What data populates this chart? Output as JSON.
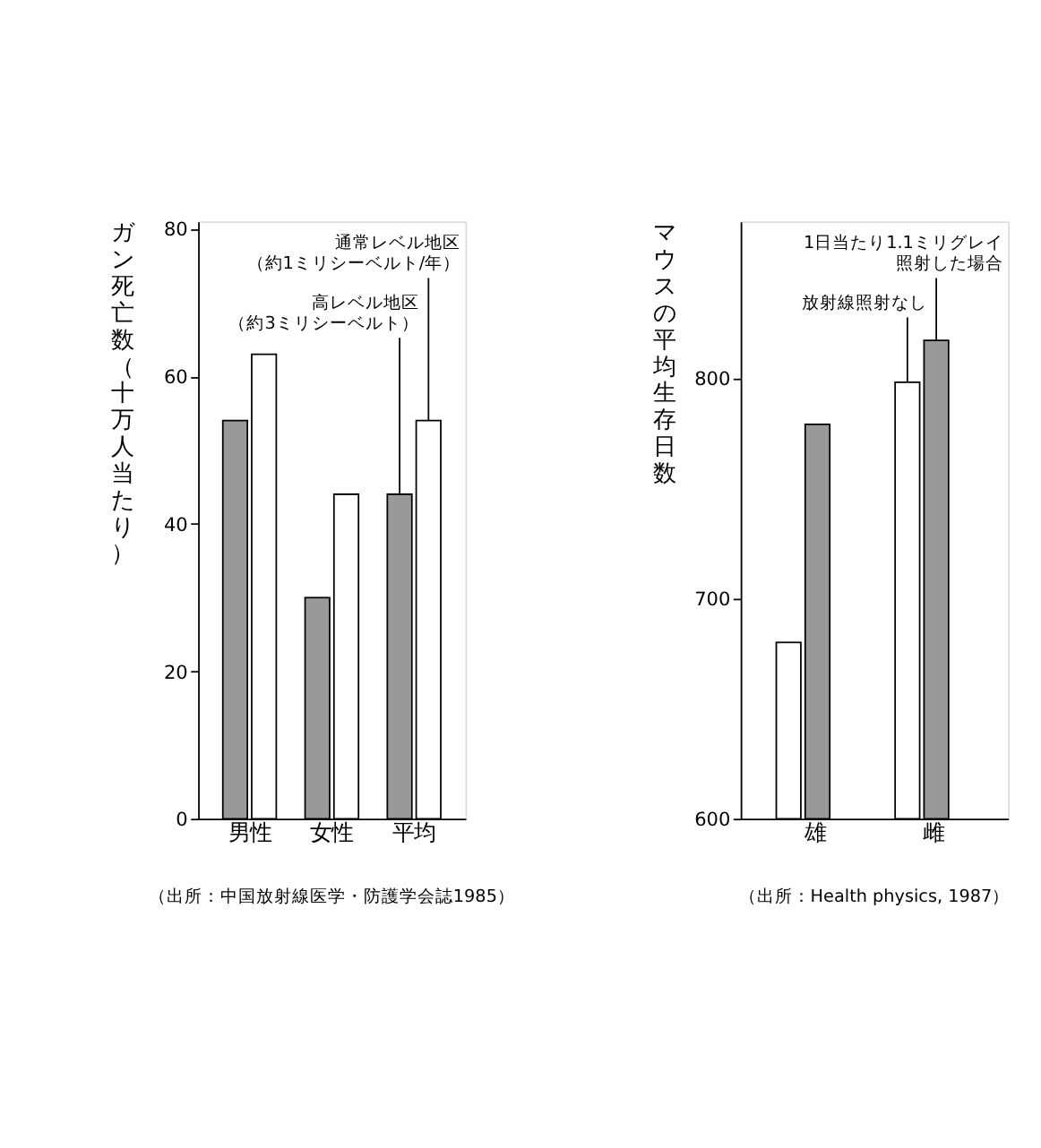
{
  "chart_data": [
    {
      "type": "bar",
      "ylabel": "ガン死亡数（十万人当たり）",
      "categories": [
        "男性",
        "女性",
        "平均"
      ],
      "series": [
        {
          "name": "高レベル地区（約3ミリシーベルト）",
          "color": "#999999",
          "values": [
            54,
            30,
            44
          ]
        },
        {
          "name": "通常レベル地区（約1ミリシーベルト/年）",
          "color": "#ffffff",
          "values": [
            63,
            44,
            54
          ]
        }
      ],
      "ylim": [
        0,
        81
      ],
      "yticks": [
        0,
        20,
        40,
        60,
        80
      ],
      "grid": false,
      "annotations": [
        "（出所：中国放射線医学・防護学会誌1985）"
      ]
    },
    {
      "type": "bar",
      "ylabel": "マウスの平均生存日数",
      "categories": [
        "雄",
        "雌"
      ],
      "series": [
        {
          "name": "放射線照射なし",
          "color": "#ffffff",
          "values": [
            680,
            798
          ]
        },
        {
          "name": "1日当たり1.1ミリグレイ照射した場合",
          "color": "#999999",
          "values": [
            779,
            817
          ]
        }
      ],
      "ylim": [
        600,
        871
      ],
      "yticks": [
        600,
        700,
        800
      ],
      "grid": false,
      "annotations": [
        "（出所：Health physics, 1987）"
      ]
    }
  ]
}
